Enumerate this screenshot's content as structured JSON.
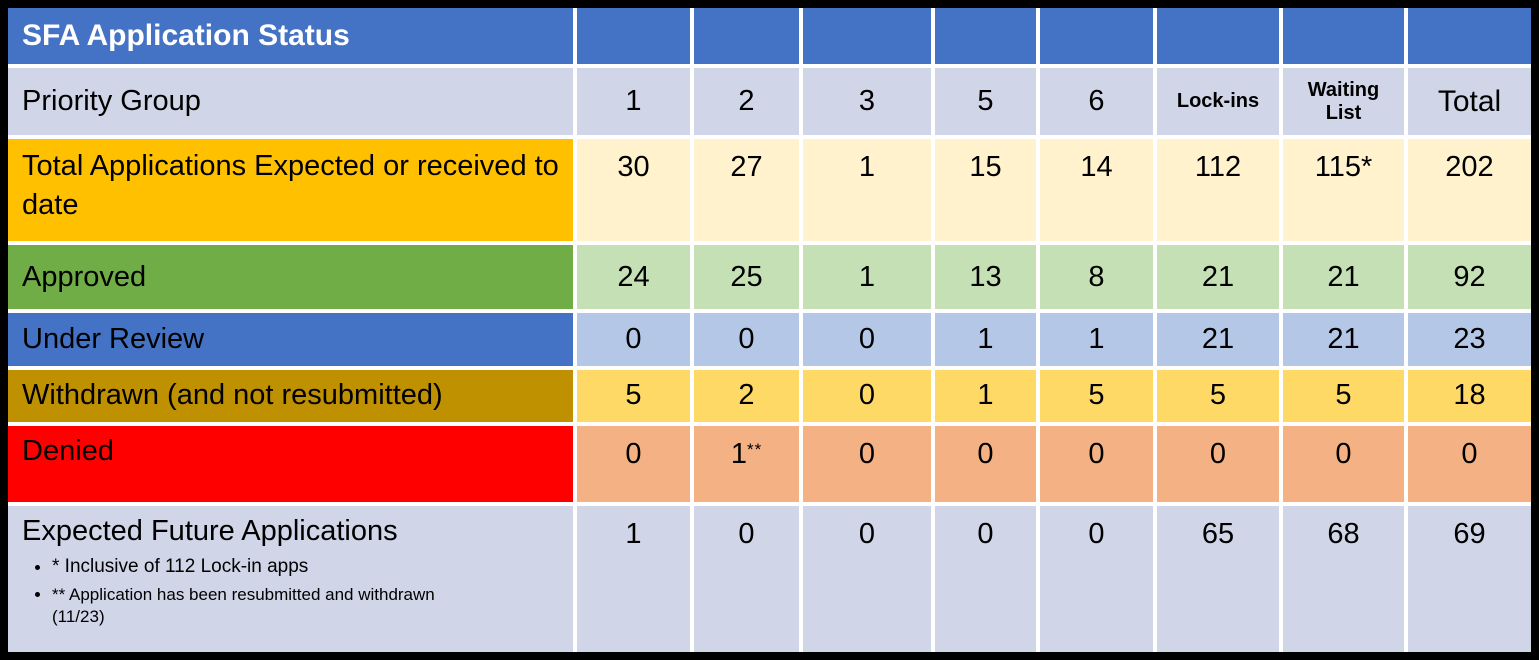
{
  "title": "SFA Application Status",
  "priority_group": {
    "label": "Priority Group",
    "columns": [
      "1",
      "2",
      "3",
      "5",
      "6",
      "Lock-ins",
      "Waiting List",
      "Total"
    ]
  },
  "rows": [
    {
      "label": "Total Applications Expected or received to date",
      "values": [
        "30",
        "27",
        "1",
        "15",
        "14",
        "112",
        "115*",
        "202"
      ]
    },
    {
      "label": "Approved",
      "values": [
        "24",
        "25",
        "1",
        "13",
        "8",
        "21",
        "21",
        "92"
      ]
    },
    {
      "label": "Under Review",
      "values": [
        "0",
        "0",
        "0",
        "1",
        "1",
        "21",
        "21",
        "23"
      ]
    },
    {
      "label": "Withdrawn (and not resubmitted)",
      "values": [
        "5",
        "2",
        "0",
        "1",
        "5",
        "5",
        "5",
        "18"
      ]
    },
    {
      "label": "Denied",
      "values": [
        "0",
        "1",
        "0",
        "0",
        "0",
        "0",
        "0",
        "0"
      ],
      "value_suffixes": {
        "1": "**"
      }
    },
    {
      "label": "Expected Future Applications",
      "values": [
        "1",
        "0",
        "0",
        "0",
        "0",
        "65",
        "68",
        "69"
      ],
      "footnotes": [
        "* Inclusive of 112 Lock-in apps",
        "** Application has been resubmitted and withdrawn (11/23)"
      ]
    }
  ],
  "colors": {
    "outer_border": "#000000",
    "gridline": "#FFFFFF",
    "header_blue": "#4472C4",
    "lavender": "#D0D5E8",
    "gold_label": "#FFC000",
    "cream_data": "#FFF2CC",
    "green_label": "#70AD47",
    "light_green_data": "#C5E0B4",
    "blue_label": "#4472C4",
    "light_blue_data": "#B4C7E7",
    "olive_label": "#BF9000",
    "yellow_data": "#FFD966",
    "red_label": "#FF0000",
    "orange_data": "#F4B183",
    "title_text": "#FFFFFF",
    "body_text": "#000000"
  }
}
